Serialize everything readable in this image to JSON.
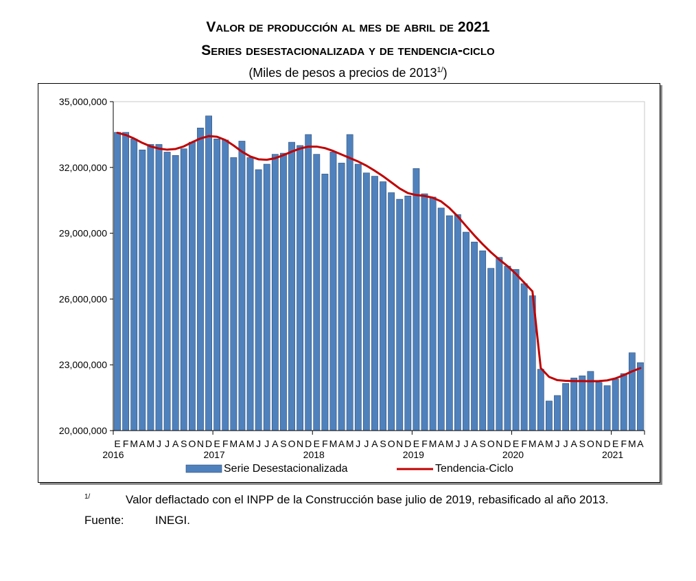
{
  "header": {
    "title": "Valor de producción al mes de abril de 2021",
    "subtitle": "Series desestacionalizada y de tendencia-ciclo",
    "units_prefix": "(Miles de pesos a precios de 2013",
    "units_sup": "1/",
    "units_suffix": ")"
  },
  "chart_data": {
    "type": "bar",
    "title": "",
    "xlabel": "",
    "ylabel": "",
    "ylim": [
      20000000,
      35000000
    ],
    "yticks": [
      20000000,
      23000000,
      26000000,
      29000000,
      32000000,
      35000000
    ],
    "ytick_labels": [
      "20,000,000",
      "23,000,000",
      "26,000,000",
      "29,000,000",
      "32,000,000",
      "35,000,000"
    ],
    "grid": false,
    "legend": "bottom",
    "month_labels": [
      "E",
      "F",
      "M",
      "A",
      "M",
      "J",
      "J",
      "A",
      "S",
      "O",
      "N",
      "D",
      "E",
      "F",
      "M",
      "A",
      "M",
      "J",
      "J",
      "A",
      "S",
      "O",
      "N",
      "D",
      "E",
      "F",
      "M",
      "A",
      "M",
      "J",
      "J",
      "A",
      "S",
      "O",
      "N",
      "D",
      "E",
      "F",
      "M",
      "A",
      "M",
      "J",
      "J",
      "A",
      "S",
      "O",
      "N",
      "D",
      "E",
      "F",
      "M",
      "A",
      "M",
      "J",
      "J",
      "A",
      "S",
      "O",
      "N",
      "D",
      "E",
      "F",
      "M",
      "A"
    ],
    "year_labels": [
      {
        "index": 0,
        "label": "2016"
      },
      {
        "index": 12,
        "label": "2017"
      },
      {
        "index": 24,
        "label": "2018"
      },
      {
        "index": 36,
        "label": "2019"
      },
      {
        "index": 48,
        "label": "2020"
      },
      {
        "index": 60,
        "label": "2021"
      }
    ],
    "series": [
      {
        "name": "Serie Desestacionalizada",
        "kind": "bar",
        "color": "#4f81bd",
        "values": [
          33600000,
          33600000,
          33300000,
          32800000,
          33050000,
          33050000,
          32700000,
          32550000,
          32850000,
          33150000,
          33800000,
          34350000,
          33300000,
          33250000,
          32450000,
          33200000,
          32450000,
          31900000,
          32150000,
          32600000,
          32650000,
          33150000,
          33000000,
          33500000,
          32600000,
          31700000,
          32700000,
          32200000,
          33500000,
          32150000,
          31750000,
          31600000,
          31350000,
          30850000,
          30550000,
          30700000,
          31950000,
          30800000,
          30650000,
          30150000,
          29800000,
          29850000,
          29050000,
          28600000,
          28200000,
          27400000,
          27900000,
          27500000,
          27350000,
          26700000,
          26150000,
          22800000,
          21350000,
          21600000,
          22150000,
          22400000,
          22500000,
          22700000,
          22200000,
          22050000,
          22350000,
          22600000,
          23550000,
          23100000
        ]
      },
      {
        "name": "Tendencia-Ciclo",
        "kind": "line",
        "color": "#c00000",
        "values": [
          33580000,
          33480000,
          33320000,
          33120000,
          32960000,
          32860000,
          32810000,
          32840000,
          32960000,
          33150000,
          33320000,
          33430000,
          33400000,
          33250000,
          33000000,
          32720000,
          32500000,
          32370000,
          32350000,
          32420000,
          32560000,
          32720000,
          32860000,
          32950000,
          32950000,
          32880000,
          32750000,
          32590000,
          32430000,
          32270000,
          32080000,
          31850000,
          31600000,
          31320000,
          31040000,
          30830000,
          30740000,
          30700000,
          30620000,
          30450000,
          30150000,
          29770000,
          29330000,
          28900000,
          28500000,
          28130000,
          27800000,
          27500000,
          27150000,
          26750000,
          26350000,
          22850000,
          22450000,
          22300000,
          22270000,
          22260000,
          22260000,
          22250000,
          22260000,
          22290000,
          22380000,
          22530000,
          22700000,
          22850000
        ]
      }
    ]
  },
  "legend": {
    "bar_label": "Serie Desestacionalizada",
    "line_label": "Tendencia-Ciclo"
  },
  "footnote": {
    "mark": "1/",
    "text": "Valor deflactado con el INPP de la Construcción base julio de 2019, rebasificado al año 2013."
  },
  "source": {
    "label": "Fuente:",
    "value": "INEGI."
  }
}
